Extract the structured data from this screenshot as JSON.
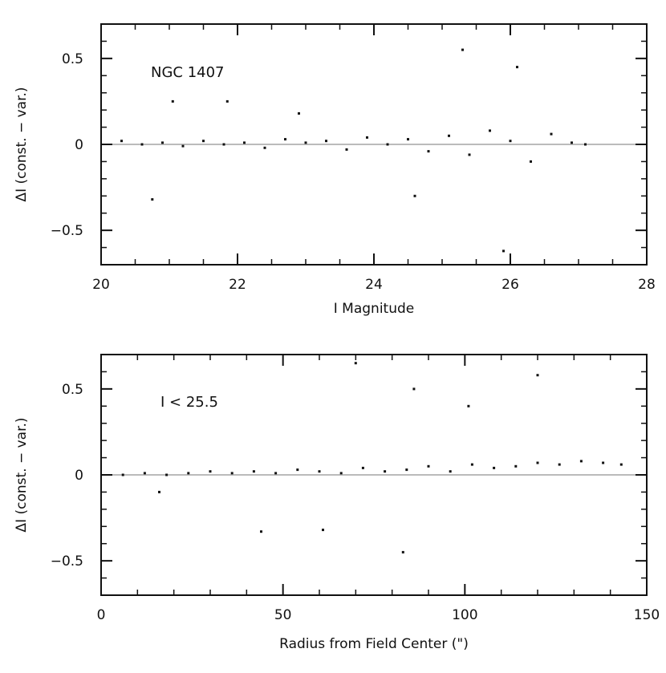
{
  "chart_data": [
    {
      "type": "scatter",
      "annotation": "NGC 1407",
      "xlabel": "I Magnitude",
      "ylabel": "ΔI (const. − var.)",
      "xlim": [
        20,
        28
      ],
      "ylim": [
        -0.7,
        0.7
      ],
      "x_ticks": [
        "20",
        "22",
        "24",
        "26",
        "28"
      ],
      "y_ticks": [
        "0.5",
        "0",
        "−0.5"
      ],
      "y_tick_values": [
        0.5,
        0,
        -0.5
      ],
      "grid": false,
      "reference_line": 0,
      "point_color": "#111111",
      "series": [
        {
          "x": [
            20.3,
            20.6,
            20.9,
            21.2,
            21.5,
            21.8,
            22.1,
            22.4,
            22.7,
            23.0,
            23.3,
            23.6,
            23.9,
            24.2,
            24.5,
            24.8,
            25.1,
            25.4,
            25.7,
            26.0,
            26.3,
            26.6,
            26.9,
            27.1,
            21.05,
            21.85,
            20.75,
            22.9,
            24.6,
            25.3,
            25.9,
            26.1
          ],
          "y": [
            0.02,
            0.0,
            0.01,
            -0.01,
            0.02,
            0.0,
            0.01,
            -0.02,
            0.03,
            0.01,
            0.02,
            -0.03,
            0.04,
            0.0,
            0.03,
            -0.04,
            0.05,
            -0.06,
            0.08,
            0.02,
            -0.1,
            0.06,
            0.01,
            0.0,
            0.25,
            0.25,
            -0.32,
            0.18,
            -0.3,
            0.55,
            -0.62,
            0.45
          ]
        }
      ]
    },
    {
      "type": "scatter",
      "annotation": "I < 25.5",
      "xlabel": "Radius from Field Center (\")",
      "ylabel": "ΔI (const. − var.)",
      "xlim": [
        0,
        150
      ],
      "ylim": [
        -0.7,
        0.7
      ],
      "x_ticks": [
        "0",
        "50",
        "100",
        "150"
      ],
      "y_ticks": [
        "0.5",
        "0",
        "−0.5"
      ],
      "y_tick_values": [
        0.5,
        0,
        -0.5
      ],
      "grid": false,
      "reference_line": 0,
      "point_color": "#111111",
      "series": [
        {
          "x": [
            6,
            12,
            18,
            24,
            30,
            36,
            42,
            48,
            54,
            60,
            66,
            72,
            78,
            84,
            90,
            96,
            102,
            108,
            114,
            120,
            126,
            132,
            138,
            143,
            16,
            44,
            61,
            83,
            86,
            101,
            120,
            70
          ],
          "y": [
            0.0,
            0.01,
            0.0,
            0.01,
            0.02,
            0.01,
            0.02,
            0.01,
            0.03,
            0.02,
            0.01,
            0.04,
            0.02,
            0.03,
            0.05,
            0.02,
            0.06,
            0.04,
            0.05,
            0.07,
            0.06,
            0.08,
            0.07,
            0.06,
            -0.1,
            -0.33,
            -0.32,
            -0.45,
            0.5,
            0.4,
            0.58,
            0.65
          ]
        }
      ]
    }
  ]
}
